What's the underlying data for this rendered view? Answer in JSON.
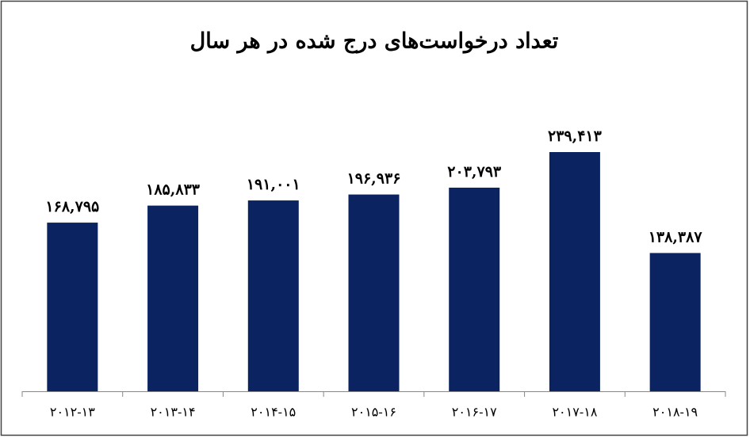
{
  "chart_data": {
    "type": "bar",
    "title": "تعداد درخواست‌های درج شده در هر سال",
    "categories": [
      "۲۰۱۲-۱۳",
      "۲۰۱۳-۱۴",
      "۲۰۱۴-۱۵",
      "۲۰۱۵-۱۶",
      "۲۰۱۶-۱۷",
      "۲۰۱۷-۱۸",
      "۲۰۱۸-۱۹"
    ],
    "values": [
      168795,
      185833,
      191001,
      196936,
      203793,
      239413,
      138387
    ],
    "value_labels": [
      "۱۶۸,۷۹۵",
      "۱۸۵,۸۳۳",
      "۱۹۱,۰۰۱",
      "۱۹۶,۹۳۶",
      "۲۰۳,۷۹۳",
      "۲۳۹,۴۱۳",
      "۱۳۸,۳۸۷"
    ],
    "color": "#0b2361"
  }
}
